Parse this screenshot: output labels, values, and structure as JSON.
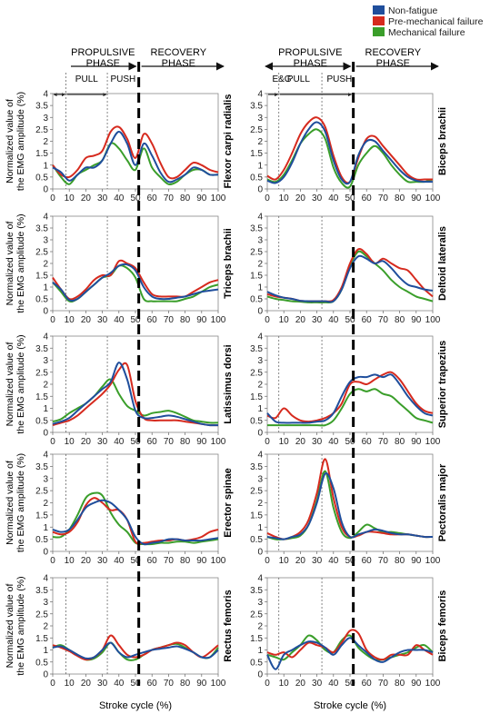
{
  "legend": {
    "placement": "top-right",
    "entries": [
      {
        "label": "Non-fatigue",
        "color": "#1f4e9c"
      },
      {
        "label": "Pre-mechanical failure",
        "color": "#d62a1e"
      },
      {
        "label": "Mechanical failure",
        "color": "#3a9e2a"
      }
    ]
  },
  "phases": {
    "propulsive": [
      "PROPULSIVE",
      "PHASE"
    ],
    "recovery": [
      "RECOVERY",
      "PHASE"
    ],
    "left_subphases": [
      "PULL",
      "PUSH"
    ],
    "right_subphases": [
      "E&G",
      "PULL",
      "PUSH"
    ]
  },
  "ylabel": [
    "Normalized value of",
    "the EMG amplitude (%)"
  ],
  "xlabel": "Stroke cycle (%)",
  "x_ticks": [
    "0",
    "10",
    "20",
    "30",
    "40",
    "50",
    "60",
    "70",
    "80",
    "90",
    "100"
  ],
  "y_ticks": [
    "0",
    "0.5",
    "1",
    "1.5",
    "2",
    "2.5",
    "3",
    "3.5",
    "4"
  ],
  "chart_data": {
    "type": "line",
    "xlabel": "Stroke cycle (%)",
    "ylabel": "Normalized value of the EMG amplitude (%)",
    "xlim": [
      0,
      100
    ],
    "ylim": [
      0,
      4
    ],
    "grid": false,
    "x": [
      0,
      5,
      10,
      15,
      20,
      25,
      30,
      35,
      40,
      45,
      50,
      55,
      60,
      65,
      70,
      75,
      80,
      85,
      90,
      95,
      100
    ],
    "markers": {
      "pull_start": 8,
      "push_start": 33,
      "recovery_start": 52,
      "right_eg_end": 7
    },
    "panels": [
      {
        "muscle": "Flexor carpi radialis",
        "column": 0,
        "row": 0,
        "series": [
          {
            "name": "Non-fatigue",
            "values": [
              0.9,
              0.7,
              0.35,
              0.6,
              0.9,
              0.9,
              1.2,
              1.9,
              2.4,
              1.9,
              1.0,
              1.9,
              1.4,
              0.7,
              0.3,
              0.4,
              0.6,
              0.9,
              0.8,
              0.6,
              0.6
            ]
          },
          {
            "name": "Pre-mechanical failure",
            "values": [
              1.0,
              0.6,
              0.5,
              0.8,
              1.3,
              1.4,
              1.6,
              2.4,
              2.6,
              2.1,
              1.3,
              2.3,
              1.9,
              1.1,
              0.5,
              0.5,
              0.8,
              1.1,
              1.0,
              0.8,
              0.7
            ]
          },
          {
            "name": "Mechanical failure",
            "values": [
              1.0,
              0.5,
              0.2,
              0.6,
              0.8,
              1.0,
              1.2,
              1.9,
              1.7,
              1.2,
              0.8,
              1.7,
              0.9,
              0.5,
              0.2,
              0.3,
              0.6,
              0.8,
              0.8,
              0.6,
              0.6
            ]
          }
        ]
      },
      {
        "muscle": "Biceps brachii",
        "column": 1,
        "row": 0,
        "series": [
          {
            "name": "Non-fatigue",
            "values": [
              0.35,
              0.25,
              0.5,
              1.1,
              1.9,
              2.5,
              2.8,
              2.4,
              1.2,
              0.4,
              0.3,
              1.4,
              2.0,
              2.0,
              1.6,
              1.2,
              0.8,
              0.5,
              0.35,
              0.3,
              0.3
            ]
          },
          {
            "name": "Pre-mechanical failure",
            "values": [
              0.55,
              0.4,
              0.8,
              1.5,
              2.3,
              2.8,
              3.0,
              2.6,
              1.4,
              0.5,
              0.3,
              1.3,
              2.1,
              2.2,
              1.8,
              1.4,
              1.0,
              0.6,
              0.4,
              0.4,
              0.4
            ]
          },
          {
            "name": "Mechanical failure",
            "values": [
              0.4,
              0.3,
              0.6,
              1.2,
              1.9,
              2.3,
              2.5,
              2.1,
              0.9,
              0.25,
              0.1,
              1.0,
              1.5,
              1.8,
              1.5,
              1.0,
              0.6,
              0.3,
              0.3,
              0.3,
              0.4
            ]
          }
        ]
      },
      {
        "muscle": "Triceps brachii",
        "column": 0,
        "row": 1,
        "series": [
          {
            "name": "Non-fatigue",
            "values": [
              1.2,
              0.9,
              0.45,
              0.5,
              0.8,
              1.1,
              1.4,
              1.6,
              1.9,
              1.95,
              1.7,
              1.0,
              0.6,
              0.5,
              0.5,
              0.55,
              0.6,
              0.7,
              0.8,
              0.85,
              0.9
            ]
          },
          {
            "name": "Pre-mechanical failure",
            "values": [
              1.4,
              0.9,
              0.5,
              0.6,
              0.9,
              1.3,
              1.5,
              1.5,
              2.1,
              2.0,
              1.8,
              1.2,
              0.7,
              0.6,
              0.6,
              0.6,
              0.6,
              0.8,
              1.0,
              1.2,
              1.3
            ]
          },
          {
            "name": "Mechanical failure",
            "values": [
              1.2,
              0.8,
              0.4,
              0.5,
              0.8,
              1.1,
              1.4,
              1.5,
              1.9,
              1.8,
              1.4,
              0.5,
              0.4,
              0.4,
              0.4,
              0.4,
              0.5,
              0.6,
              0.8,
              1.0,
              1.1
            ]
          }
        ]
      },
      {
        "muscle": "Deltoid  lateralis",
        "column": 1,
        "row": 1,
        "series": [
          {
            "name": "Non-fatigue",
            "values": [
              0.8,
              0.65,
              0.55,
              0.5,
              0.42,
              0.4,
              0.4,
              0.4,
              0.4,
              0.9,
              1.8,
              2.3,
              2.2,
              2.0,
              2.1,
              1.8,
              1.4,
              1.1,
              1.0,
              0.9,
              0.85
            ]
          },
          {
            "name": "Pre-mechanical failure",
            "values": [
              0.7,
              0.6,
              0.55,
              0.5,
              0.42,
              0.4,
              0.4,
              0.4,
              0.45,
              1.0,
              2.0,
              2.6,
              2.4,
              2.0,
              2.2,
              2.0,
              1.8,
              1.7,
              1.3,
              0.9,
              0.6
            ]
          },
          {
            "name": "Mechanical failure",
            "values": [
              0.6,
              0.5,
              0.45,
              0.4,
              0.38,
              0.35,
              0.35,
              0.35,
              0.4,
              0.9,
              1.9,
              2.5,
              2.3,
              2.0,
              1.7,
              1.3,
              1.0,
              0.8,
              0.6,
              0.5,
              0.4
            ]
          }
        ]
      },
      {
        "muscle": "Latissimus dorsi",
        "column": 0,
        "row": 2,
        "series": [
          {
            "name": "Non-fatigue",
            "values": [
              0.35,
              0.45,
              0.6,
              0.9,
              1.2,
              1.5,
              1.8,
              2.1,
              2.9,
              2.2,
              0.9,
              0.6,
              0.6,
              0.65,
              0.7,
              0.65,
              0.55,
              0.45,
              0.35,
              0.3,
              0.3
            ]
          },
          {
            "name": "Pre-mechanical failure",
            "values": [
              0.3,
              0.4,
              0.5,
              0.7,
              1.0,
              1.3,
              1.6,
              2.0,
              2.6,
              2.8,
              1.3,
              0.6,
              0.5,
              0.5,
              0.5,
              0.5,
              0.45,
              0.4,
              0.35,
              0.3,
              0.3
            ]
          },
          {
            "name": "Mechanical failure",
            "values": [
              0.45,
              0.55,
              0.8,
              1.0,
              1.2,
              1.5,
              1.9,
              2.2,
              1.6,
              1.1,
              0.9,
              0.7,
              0.8,
              0.85,
              0.9,
              0.8,
              0.65,
              0.5,
              0.45,
              0.4,
              0.4
            ]
          }
        ]
      },
      {
        "muscle": "Superior trapezius",
        "column": 1,
        "row": 2,
        "series": [
          {
            "name": "Non-fatigue",
            "values": [
              0.8,
              0.45,
              0.4,
              0.4,
              0.4,
              0.4,
              0.45,
              0.5,
              0.8,
              1.5,
              2.1,
              2.3,
              2.3,
              2.4,
              2.3,
              2.4,
              2.0,
              1.5,
              1.1,
              0.8,
              0.7
            ]
          },
          {
            "name": "Pre-mechanical failure",
            "values": [
              0.7,
              0.6,
              1.0,
              0.7,
              0.5,
              0.45,
              0.5,
              0.6,
              0.8,
              1.2,
              2.0,
              2.1,
              2.0,
              2.2,
              2.4,
              2.5,
              2.2,
              1.7,
              1.2,
              0.9,
              0.8
            ]
          },
          {
            "name": "Mechanical failure",
            "values": [
              0.3,
              0.3,
              0.3,
              0.3,
              0.3,
              0.3,
              0.3,
              0.3,
              0.5,
              1.0,
              1.6,
              1.8,
              1.7,
              1.8,
              1.6,
              1.5,
              1.2,
              0.9,
              0.6,
              0.5,
              0.4
            ]
          }
        ]
      },
      {
        "muscle": "Erector spinae",
        "column": 0,
        "row": 3,
        "series": [
          {
            "name": "Non-fatigue",
            "values": [
              0.9,
              0.8,
              0.9,
              1.3,
              1.8,
              2.0,
              2.1,
              2.0,
              1.7,
              1.3,
              0.6,
              0.3,
              0.35,
              0.4,
              0.5,
              0.5,
              0.45,
              0.45,
              0.45,
              0.5,
              0.55
            ]
          },
          {
            "name": "Pre-mechanical failure",
            "values": [
              0.8,
              0.7,
              0.8,
              1.2,
              1.9,
              2.2,
              2.0,
              1.7,
              1.7,
              1.3,
              0.4,
              0.35,
              0.4,
              0.45,
              0.45,
              0.5,
              0.45,
              0.5,
              0.6,
              0.8,
              0.9
            ]
          },
          {
            "name": "Mechanical failure",
            "values": [
              0.6,
              0.6,
              0.9,
              1.5,
              2.2,
              2.4,
              2.3,
              1.6,
              1.1,
              0.8,
              0.35,
              0.3,
              0.3,
              0.35,
              0.35,
              0.4,
              0.4,
              0.35,
              0.4,
              0.45,
              0.5
            ]
          }
        ]
      },
      {
        "muscle": "Pectoralis major",
        "column": 1,
        "row": 3,
        "series": [
          {
            "name": "Non-fatigue",
            "values": [
              0.6,
              0.55,
              0.5,
              0.6,
              0.7,
              1.1,
              2.0,
              3.2,
              2.6,
              1.2,
              0.6,
              0.7,
              0.8,
              0.9,
              0.85,
              0.75,
              0.7,
              0.7,
              0.65,
              0.6,
              0.6
            ]
          },
          {
            "name": "Pre-mechanical failure",
            "values": [
              0.75,
              0.6,
              0.5,
              0.6,
              0.8,
              1.3,
              2.4,
              3.8,
              2.2,
              1.0,
              0.6,
              0.65,
              0.8,
              0.8,
              0.75,
              0.7,
              0.7,
              0.7,
              0.65,
              0.6,
              0.6
            ]
          },
          {
            "name": "Mechanical failure",
            "values": [
              0.6,
              0.5,
              0.5,
              0.55,
              0.65,
              1.1,
              2.1,
              3.3,
              1.8,
              0.8,
              0.55,
              0.8,
              1.1,
              0.95,
              0.8,
              0.8,
              0.75,
              0.7,
              0.65,
              0.6,
              0.6
            ]
          }
        ]
      },
      {
        "muscle": "Rectus femoris",
        "column": 0,
        "row": 4,
        "series": [
          {
            "name": "Non-fatigue",
            "values": [
              1.1,
              1.15,
              1.0,
              0.8,
              0.65,
              0.7,
              1.0,
              1.3,
              0.9,
              0.7,
              0.8,
              0.9,
              1.0,
              1.05,
              1.1,
              1.15,
              1.05,
              0.9,
              0.7,
              0.7,
              1.0
            ]
          },
          {
            "name": "Pre-mechanical failure",
            "values": [
              1.2,
              1.1,
              0.95,
              0.75,
              0.6,
              0.7,
              1.0,
              1.6,
              1.2,
              0.8,
              0.7,
              0.8,
              1.0,
              1.1,
              1.2,
              1.3,
              1.2,
              0.9,
              0.7,
              0.9,
              1.2
            ]
          },
          {
            "name": "Mechanical failure",
            "values": [
              1.1,
              1.2,
              1.0,
              0.8,
              0.6,
              0.65,
              0.9,
              1.3,
              0.9,
              0.6,
              0.6,
              0.8,
              1.0,
              1.1,
              1.2,
              1.25,
              1.1,
              0.9,
              0.7,
              0.7,
              1.1
            ]
          }
        ]
      },
      {
        "muscle": "Biceps femoris",
        "column": 1,
        "row": 4,
        "series": [
          {
            "name": "Non-fatigue",
            "values": [
              0.8,
              0.2,
              0.8,
              1.0,
              1.2,
              1.35,
              1.3,
              1.1,
              0.8,
              1.2,
              1.5,
              1.2,
              0.9,
              0.6,
              0.5,
              0.7,
              0.9,
              1.0,
              1.0,
              1.0,
              0.9
            ]
          },
          {
            "name": "Pre-mechanical failure",
            "values": [
              0.9,
              0.8,
              0.9,
              0.7,
              1.0,
              1.3,
              1.2,
              1.1,
              0.9,
              1.3,
              1.8,
              1.7,
              1.0,
              0.7,
              0.6,
              0.8,
              0.8,
              0.8,
              1.2,
              1.0,
              0.8
            ]
          },
          {
            "name": "Mechanical failure",
            "values": [
              0.8,
              0.7,
              0.6,
              0.9,
              1.2,
              1.6,
              1.4,
              1.0,
              0.9,
              1.4,
              1.6,
              1.1,
              0.8,
              0.6,
              0.6,
              0.7,
              0.8,
              0.9,
              1.1,
              1.2,
              0.9
            ]
          }
        ]
      }
    ]
  }
}
